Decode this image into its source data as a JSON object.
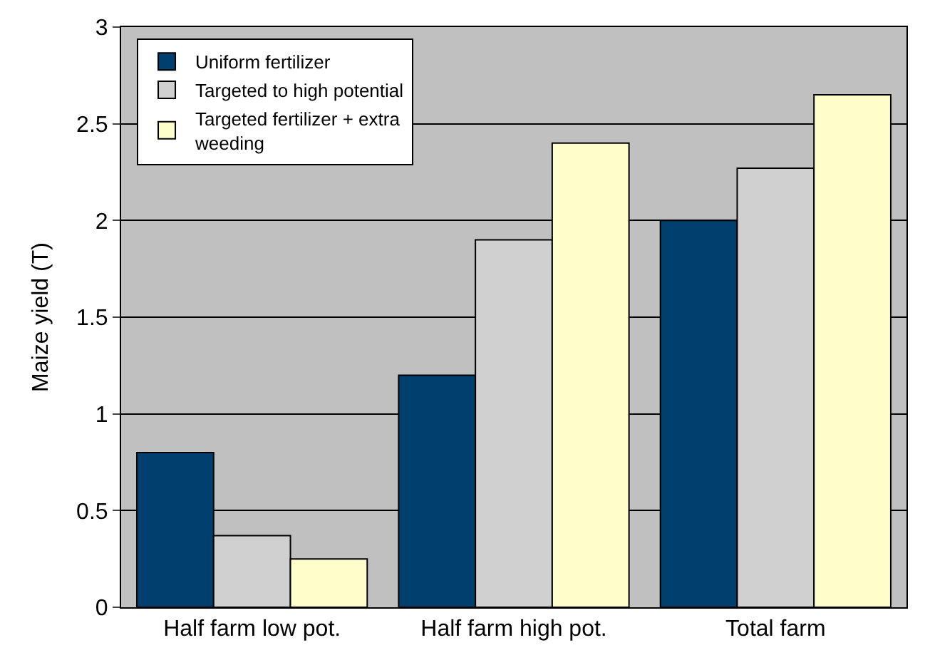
{
  "chart_data": {
    "type": "bar",
    "ylabel": "Maize yield (T)",
    "categories": [
      "Half farm low pot.",
      "Half farm high pot.",
      "Total farm"
    ],
    "series": [
      {
        "name": "Uniform fertilizer",
        "color": "#003f6e",
        "values": [
          0.8,
          1.2,
          2.0
        ]
      },
      {
        "name": "Targeted to high potential",
        "color": "#d0d0d0",
        "values": [
          0.37,
          1.9,
          2.27
        ]
      },
      {
        "name": "Targeted fertilizer + extra weeding",
        "color": "#ffffcc",
        "values": [
          0.25,
          2.4,
          2.65
        ]
      }
    ],
    "ylim": [
      0,
      3
    ],
    "yticks": [
      0,
      0.5,
      1,
      1.5,
      2,
      2.5,
      3
    ],
    "grid": "y",
    "legend": "top left"
  }
}
